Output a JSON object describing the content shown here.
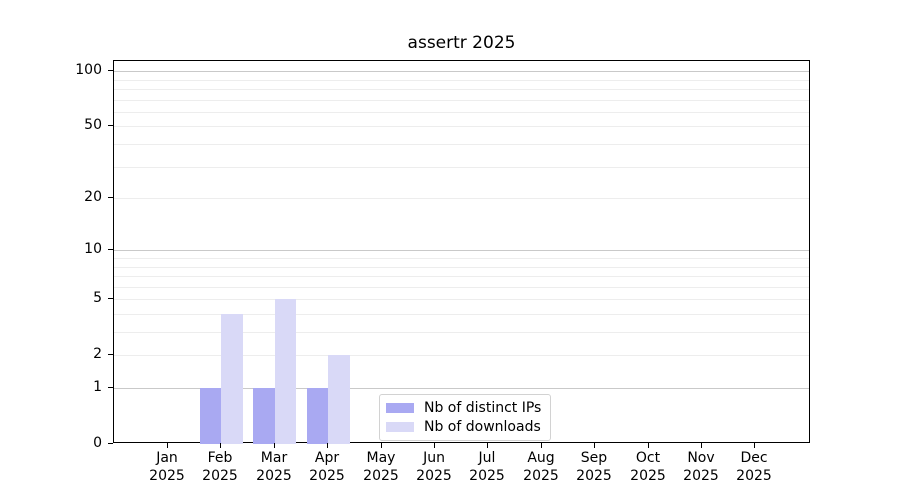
{
  "chart_data": {
    "type": "bar",
    "title": "assertr 2025",
    "categories": [
      "Jan 2025",
      "Feb 2025",
      "Mar 2025",
      "Apr 2025",
      "May 2025",
      "Jun 2025",
      "Jul 2025",
      "Aug 2025",
      "Sep 2025",
      "Oct 2025",
      "Nov 2025",
      "Dec 2025"
    ],
    "series": [
      {
        "name": "Nb of distinct IPs",
        "color": "#a9a9f2",
        "values": [
          0,
          1,
          1,
          1,
          0,
          0,
          0,
          0,
          0,
          0,
          0,
          0
        ]
      },
      {
        "name": "Nb of downloads",
        "color": "#d9d9f7",
        "values": [
          0,
          4,
          5,
          2,
          0,
          0,
          0,
          0,
          0,
          0,
          0,
          0
        ]
      }
    ],
    "y_axis": {
      "scale": "log1p",
      "tick_labels": [
        0,
        1,
        2,
        5,
        10,
        20,
        50,
        100
      ],
      "major_gridlines": [
        1,
        10,
        100
      ],
      "minor_gridlines": [
        2,
        3,
        4,
        5,
        6,
        7,
        8,
        9,
        20,
        30,
        40,
        50,
        60,
        70,
        80,
        90
      ],
      "range": [
        0,
        113
      ]
    },
    "legend": {
      "entries": [
        "Nb of distinct IPs",
        "Nb of downloads"
      ],
      "position": "bottom-left-of-center"
    },
    "colors": {
      "major_grid": "#c9c9c9",
      "minor_grid": "#ededed",
      "axis": "#000000",
      "text": "#000000",
      "background": "#ffffff"
    },
    "grid": "horizontal"
  }
}
